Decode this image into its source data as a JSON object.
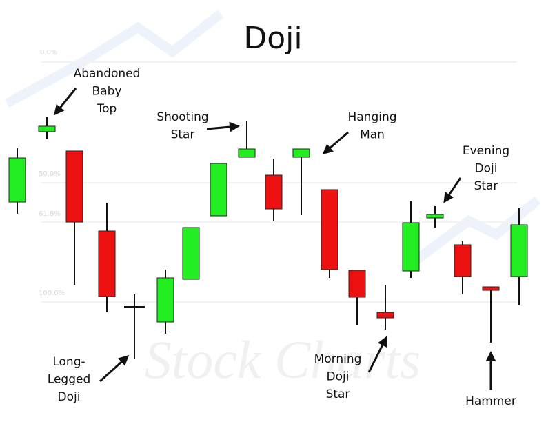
{
  "header": {
    "title": "Doji"
  },
  "watermark": {
    "brand": "Stock Charts",
    "levels": [
      "0.0%",
      "50.0%",
      "61.8%",
      "100.0%"
    ]
  },
  "annotations": [
    {
      "lines": [
        "Abandoned",
        "Baby",
        "Top"
      ]
    },
    {
      "lines": [
        "Shooting",
        "Star"
      ]
    },
    {
      "lines": [
        "Hanging",
        "Man"
      ]
    },
    {
      "lines": [
        "Evening",
        "Doji",
        "Star"
      ]
    },
    {
      "lines": [
        "Long-",
        "Legged",
        "Doji"
      ]
    },
    {
      "lines": [
        "Morning",
        "Doji",
        "Star"
      ]
    },
    {
      "lines": [
        "Hammer"
      ]
    }
  ]
}
